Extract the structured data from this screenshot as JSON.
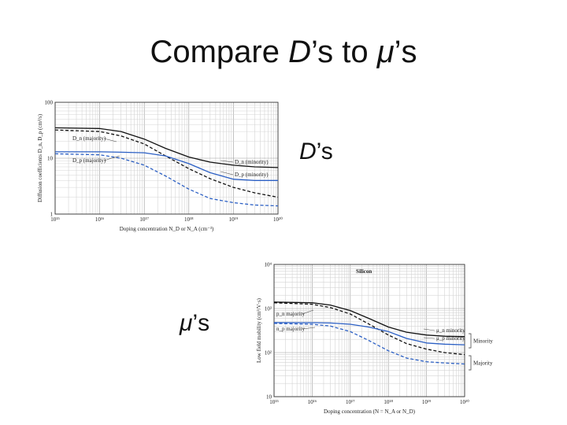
{
  "slide": {
    "title_prefix": "Compare ",
    "title_d": "D",
    "title_mid": "’s to ",
    "title_mu": "μ",
    "title_suffix": "’s",
    "label_d_symbol": "D",
    "label_d_suffix": "’s",
    "label_mu_symbol": "μ",
    "label_mu_suffix": "’s"
  },
  "chart_data": [
    {
      "type": "line",
      "xscale": "log",
      "yscale": "log",
      "xlim": [
        1000000000000000.0,
        1e+20
      ],
      "ylim": [
        1,
        100
      ],
      "xticks": [
        "10¹⁵",
        "10¹⁶",
        "10¹⁷",
        "10¹⁸",
        "10¹⁹",
        "10²⁰"
      ],
      "yticks": [
        "1",
        "10",
        "100"
      ],
      "xlabel": "Doping concentration N_D or N_A (cm⁻³)",
      "ylabel": "Diffusion coefficients D_n, D_p (cm²/s)",
      "grid": true,
      "series": [
        {
          "name": "D_n (minority)",
          "color": "#111111",
          "dash": "solid",
          "x": [
            1000000000000000.0,
            1e+16,
            3e+16,
            1e+17,
            3e+17,
            1e+18,
            3e+18,
            1e+19,
            3e+19,
            1e+20
          ],
          "y": [
            35,
            34,
            30,
            22,
            15,
            10.5,
            8.5,
            7.5,
            7.0,
            6.8
          ]
        },
        {
          "name": "D_n (majority)",
          "color": "#111111",
          "dash": "dashed",
          "x": [
            1000000000000000.0,
            1e+16,
            3e+16,
            1e+17,
            3e+17,
            1e+18,
            3e+18,
            1e+19,
            3e+19,
            1e+20
          ],
          "y": [
            32,
            30,
            25,
            18,
            11,
            6.5,
            4.3,
            3.0,
            2.4,
            2.0
          ]
        },
        {
          "name": "D_p (minority)",
          "color": "#2b5fc4",
          "dash": "solid",
          "x": [
            1000000000000000.0,
            1e+16,
            3e+16,
            1e+17,
            3e+17,
            1e+18,
            3e+18,
            1e+19,
            3e+19,
            1e+20
          ],
          "y": [
            13,
            13,
            12.8,
            12.5,
            11,
            8,
            5.5,
            4.2,
            4.0,
            4.0
          ]
        },
        {
          "name": "D_p (majority)",
          "color": "#2b5fc4",
          "dash": "dashed",
          "x": [
            1000000000000000.0,
            1e+16,
            3e+16,
            1e+17,
            3e+17,
            1e+18,
            3e+18,
            1e+19,
            3e+19,
            1e+20
          ],
          "y": [
            12,
            11.5,
            10,
            7.5,
            4.8,
            2.8,
            1.9,
            1.6,
            1.45,
            1.4
          ]
        }
      ],
      "annotations": [
        "D_n (majority)",
        "D_p (majority)",
        "D_n (minority)",
        "D_p (minority)"
      ]
    },
    {
      "type": "line",
      "xscale": "log",
      "yscale": "log",
      "xlim": [
        1000000000000000.0,
        1e+20
      ],
      "ylim": [
        10,
        10000
      ],
      "xticks": [
        "10¹⁵",
        "10¹⁶",
        "10¹⁷",
        "10¹⁸",
        "10¹⁹",
        "10²⁰"
      ],
      "yticks": [
        "10",
        "10²",
        "10³",
        "10⁴"
      ],
      "xlabel": "Doping concentration (N = N_A or N_D)",
      "ylabel": "Low field mobility (cm²/V·s)",
      "title": "Silicon",
      "grid": true,
      "series": [
        {
          "name": "μ_n minority",
          "color": "#111111",
          "dash": "solid",
          "x": [
            1000000000000000.0,
            1e+16,
            3e+16,
            1e+17,
            3e+17,
            1e+18,
            3e+18,
            1e+19,
            3e+19,
            1e+20
          ],
          "y": [
            1400,
            1350,
            1200,
            900,
            600,
            380,
            290,
            250,
            235,
            230
          ]
        },
        {
          "name": "μ_n majority",
          "color": "#111111",
          "dash": "dashed",
          "x": [
            1000000000000000.0,
            1e+16,
            3e+16,
            1e+17,
            3e+17,
            1e+18,
            3e+18,
            1e+19,
            3e+19,
            1e+20
          ],
          "y": [
            1350,
            1250,
            1050,
            750,
            450,
            250,
            160,
            120,
            100,
            90
          ]
        },
        {
          "name": "μ_p minority",
          "color": "#2b5fc4",
          "dash": "solid",
          "x": [
            1000000000000000.0,
            1e+16,
            3e+16,
            1e+17,
            3e+17,
            1e+18,
            3e+18,
            1e+19,
            3e+19,
            1e+20
          ],
          "y": [
            480,
            478,
            470,
            440,
            380,
            300,
            210,
            165,
            155,
            150
          ]
        },
        {
          "name": "μ_p majority",
          "color": "#2b5fc4",
          "dash": "dashed",
          "x": [
            1000000000000000.0,
            1e+16,
            3e+16,
            1e+17,
            3e+17,
            1e+18,
            3e+18,
            1e+19,
            3e+19,
            1e+20
          ],
          "y": [
            460,
            440,
            400,
            300,
            190,
            110,
            75,
            62,
            58,
            55
          ]
        }
      ],
      "annotations": [
        "p_n majority",
        "n_p majority",
        "μ_n minority",
        "μ_p minority"
      ],
      "brackets": [
        "Minority",
        "Majority"
      ]
    }
  ]
}
